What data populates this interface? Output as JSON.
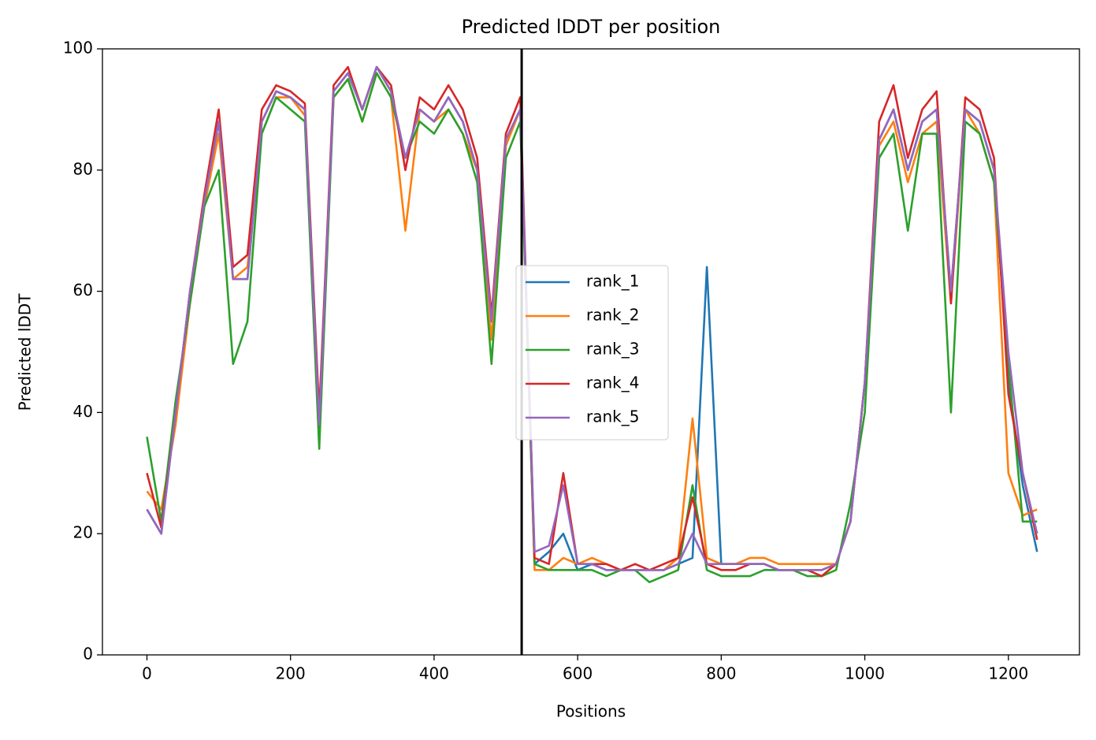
{
  "chart_data": {
    "type": "line",
    "title": "Predicted lDDT per position",
    "xlabel": "Positions",
    "ylabel": "Predicted lDDT",
    "x": [
      0,
      20,
      40,
      60,
      80,
      100,
      120,
      140,
      160,
      180,
      200,
      220,
      240,
      260,
      280,
      300,
      320,
      340,
      360,
      380,
      400,
      420,
      440,
      460,
      480,
      500,
      520,
      540,
      560,
      580,
      600,
      620,
      640,
      660,
      680,
      700,
      720,
      740,
      760,
      780,
      800,
      820,
      840,
      860,
      880,
      900,
      920,
      940,
      960,
      980,
      1000,
      1020,
      1040,
      1060,
      1080,
      1100,
      1120,
      1140,
      1160,
      1180,
      1200,
      1220,
      1240
    ],
    "series": [
      {
        "name": "rank_1",
        "color": "#1f77b4",
        "values": [
          24,
          20,
          40,
          60,
          75,
          88,
          62,
          62,
          88,
          93,
          92,
          90,
          36,
          93,
          96,
          90,
          97,
          93,
          82,
          90,
          88,
          92,
          88,
          80,
          55,
          85,
          90,
          15,
          17,
          20,
          14,
          15,
          14,
          14,
          14,
          14,
          14,
          15,
          16,
          64,
          15,
          15,
          15,
          15,
          14,
          14,
          14,
          14,
          15,
          22,
          45,
          85,
          90,
          80,
          88,
          90,
          60,
          90,
          88,
          80,
          45,
          28,
          17
        ]
      },
      {
        "name": "rank_2",
        "color": "#ff7f0e",
        "values": [
          27,
          24,
          38,
          58,
          74,
          86,
          62,
          64,
          86,
          92,
          92,
          89,
          37,
          92,
          95,
          88,
          96,
          92,
          70,
          90,
          88,
          90,
          86,
          80,
          52,
          84,
          90,
          14,
          14,
          16,
          15,
          16,
          15,
          14,
          14,
          14,
          14,
          16,
          39,
          16,
          15,
          15,
          16,
          16,
          15,
          15,
          15,
          15,
          15,
          22,
          45,
          84,
          88,
          78,
          86,
          88,
          58,
          90,
          86,
          78,
          30,
          23,
          24
        ]
      },
      {
        "name": "rank_3",
        "color": "#2ca02c",
        "values": [
          36,
          22,
          42,
          58,
          74,
          80,
          48,
          55,
          86,
          92,
          90,
          88,
          34,
          92,
          95,
          88,
          96,
          92,
          82,
          88,
          86,
          90,
          86,
          78,
          48,
          82,
          88,
          15,
          14,
          14,
          14,
          14,
          13,
          14,
          14,
          12,
          13,
          14,
          28,
          14,
          13,
          13,
          13,
          14,
          14,
          14,
          13,
          13,
          14,
          25,
          40,
          82,
          86,
          70,
          86,
          86,
          40,
          88,
          86,
          78,
          48,
          22,
          22
        ]
      },
      {
        "name": "rank_4",
        "color": "#d62728",
        "values": [
          30,
          21,
          40,
          60,
          76,
          90,
          64,
          66,
          90,
          94,
          93,
          91,
          40,
          94,
          97,
          90,
          97,
          94,
          80,
          92,
          90,
          94,
          90,
          82,
          56,
          86,
          92,
          16,
          15,
          30,
          15,
          15,
          15,
          14,
          15,
          14,
          15,
          16,
          26,
          15,
          14,
          14,
          15,
          15,
          14,
          14,
          14,
          13,
          15,
          22,
          45,
          88,
          94,
          82,
          90,
          93,
          58,
          92,
          90,
          82,
          43,
          30,
          19
        ]
      },
      {
        "name": "rank_5",
        "color": "#9467bd",
        "values": [
          24,
          20,
          40,
          60,
          75,
          88,
          62,
          62,
          88,
          93,
          92,
          90,
          38,
          93,
          96,
          90,
          97,
          93,
          82,
          90,
          88,
          92,
          88,
          80,
          55,
          85,
          90,
          17,
          18,
          28,
          15,
          15,
          14,
          14,
          14,
          14,
          14,
          15,
          20,
          15,
          15,
          15,
          15,
          15,
          14,
          14,
          14,
          14,
          15,
          22,
          45,
          85,
          90,
          80,
          88,
          90,
          60,
          90,
          88,
          80,
          50,
          30,
          20
        ]
      }
    ],
    "vline": 522,
    "xlim": [
      -62,
      1299
    ],
    "ylim": [
      0,
      100
    ],
    "xticks": [
      0,
      200,
      400,
      600,
      800,
      1000,
      1200
    ],
    "yticks": [
      0,
      20,
      40,
      60,
      80,
      100
    ]
  }
}
